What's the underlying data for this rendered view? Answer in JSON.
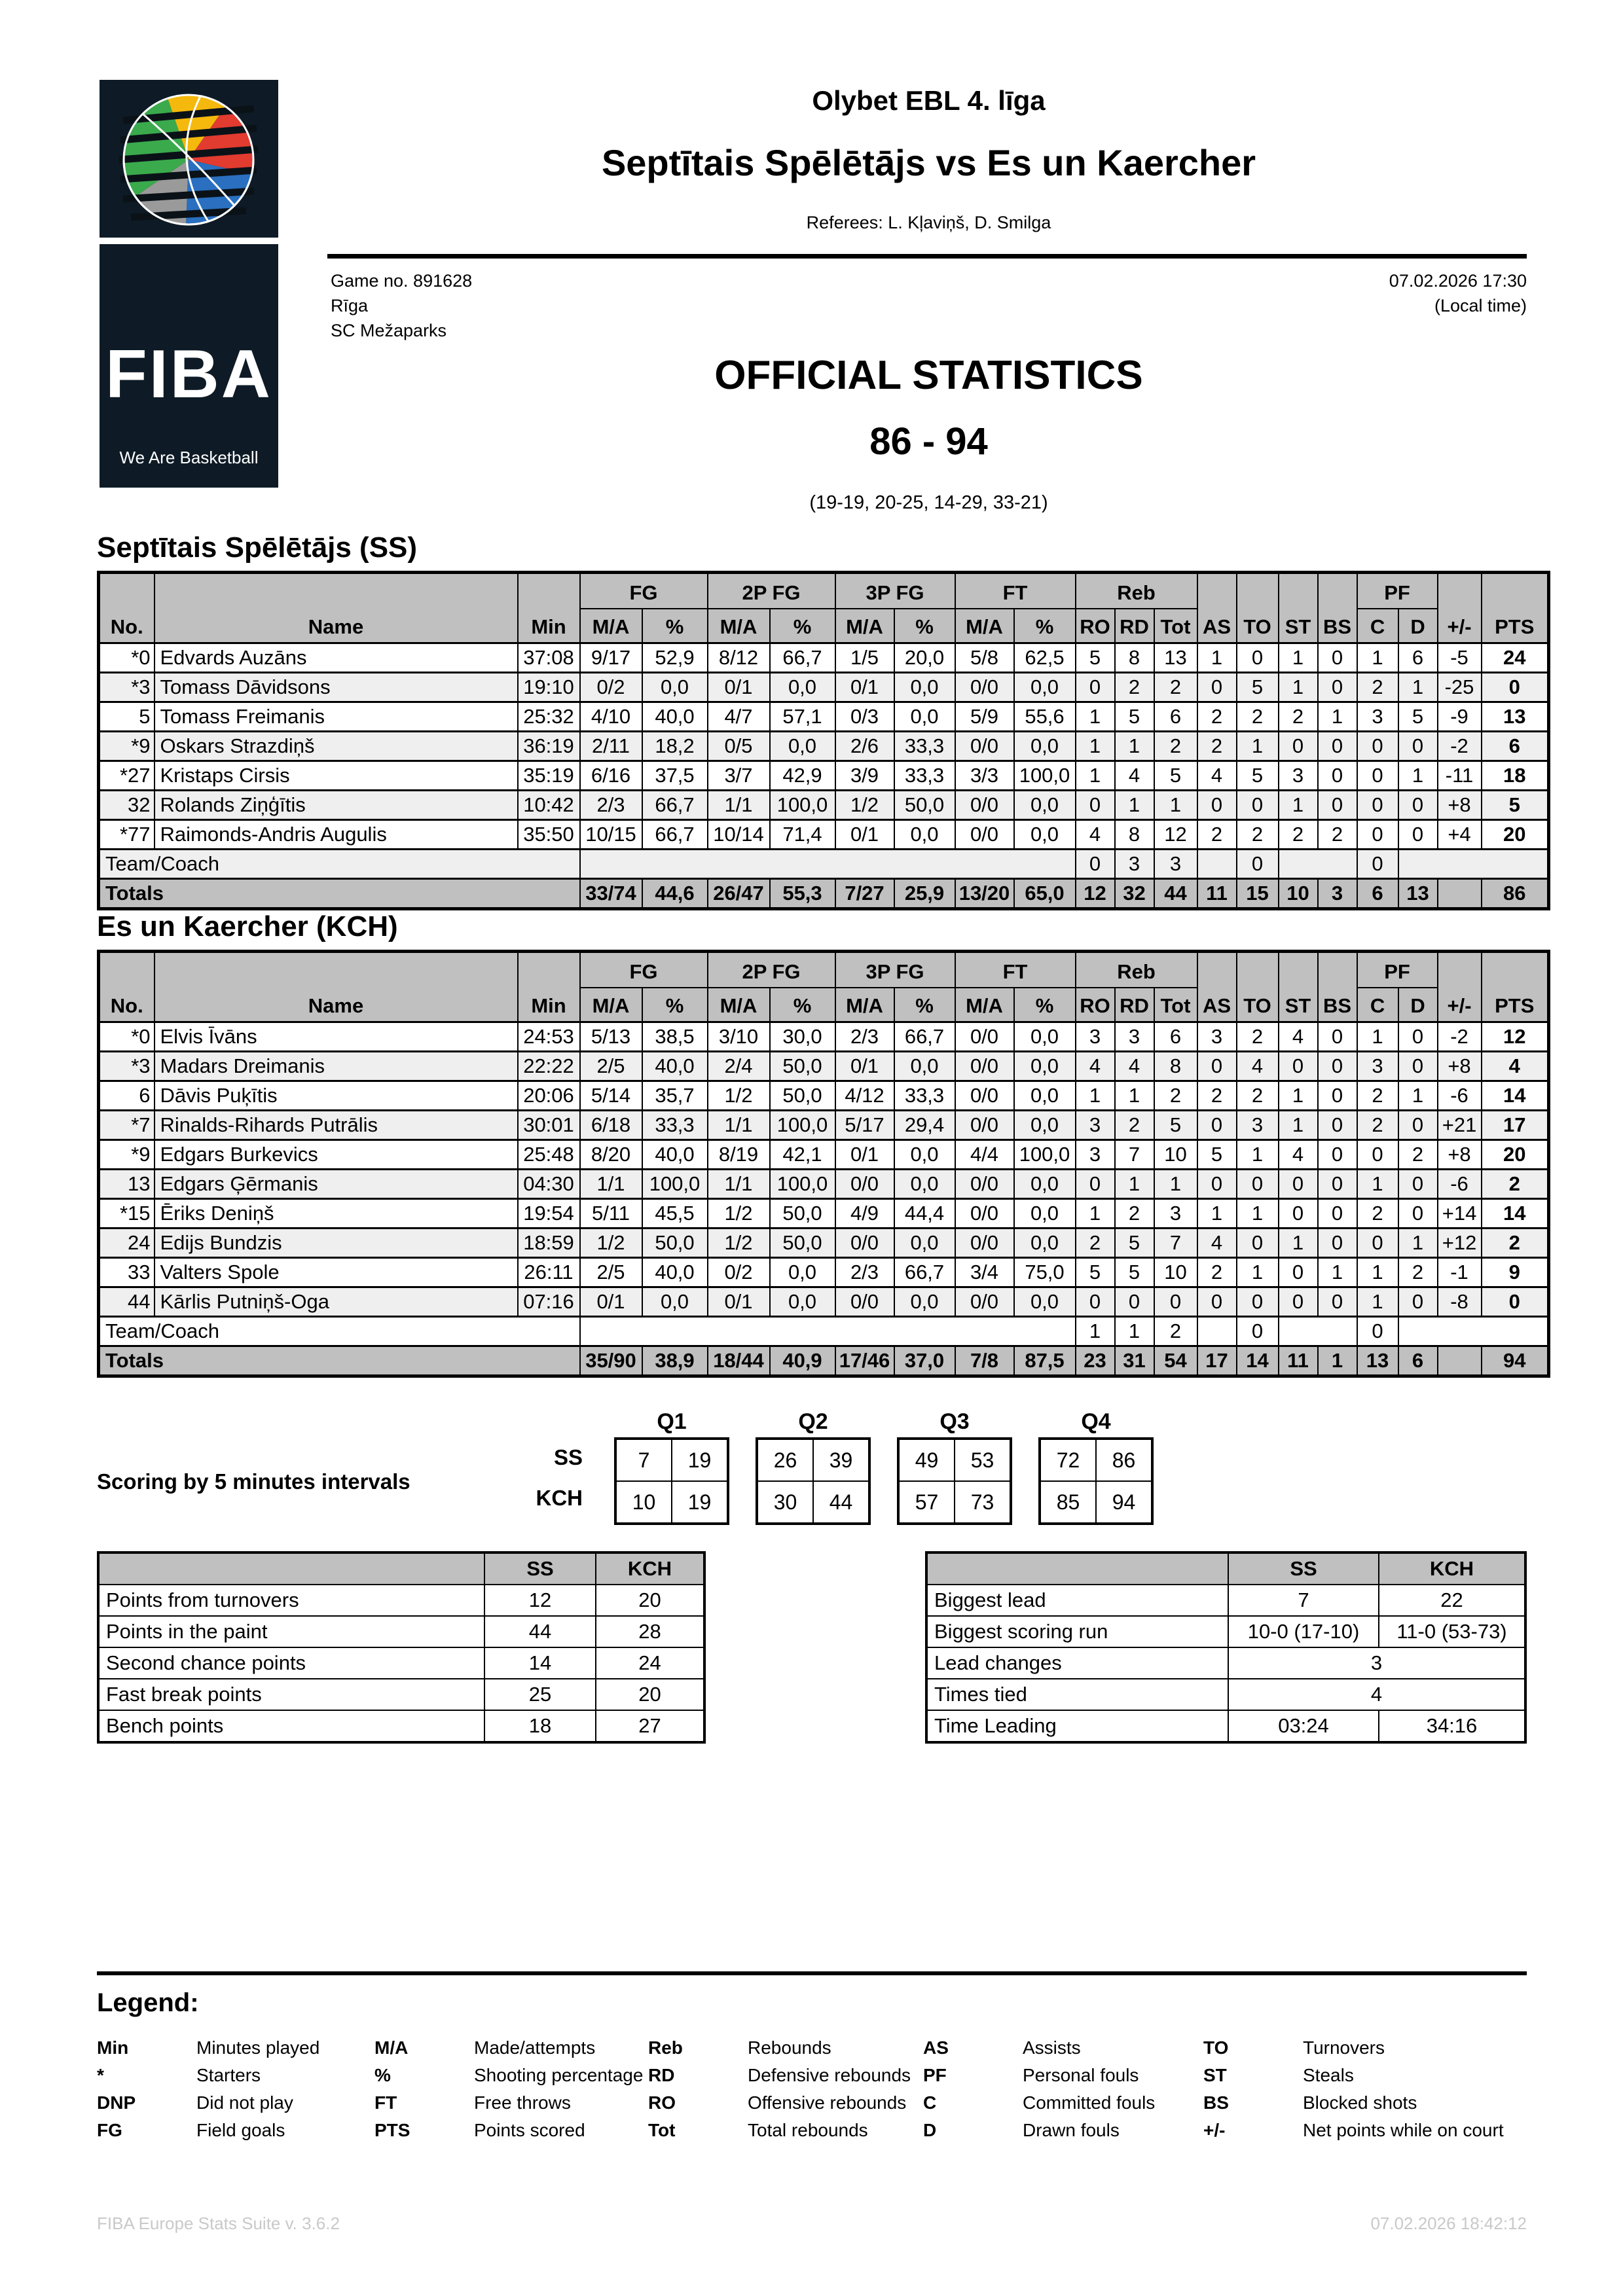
{
  "header": {
    "league": "Olybet EBL 4. līga",
    "matchup": "Septītais Spēlētājs vs Es un Kaercher",
    "referees": "Referees: L. Kļaviņš, D. Smilga",
    "game_no": "Game no. 891628",
    "city": "Rīga",
    "venue": "SC Mežaparks",
    "datetime": "07.02.2026 17:30",
    "local_time": "(Local time)",
    "title": "OFFICIAL STATISTICS",
    "score": "86 - 94",
    "quarter_scores": "(19-19, 20-25, 14-29, 33-21)",
    "logo_word": "FIBA",
    "logo_tagline": "We Are Basketball"
  },
  "labels": {
    "no": "No.",
    "name": "Name",
    "min": "Min",
    "ma": "M/A",
    "pct": "%",
    "fg": "FG",
    "fg2": "2P FG",
    "fg3": "3P FG",
    "ft": "FT",
    "reb": "Reb",
    "ro": "RO",
    "rd": "RD",
    "tot": "Tot",
    "as": "AS",
    "to": "TO",
    "st": "ST",
    "bs": "BS",
    "pf": "PF",
    "c": "C",
    "d": "D",
    "pm": "+/-",
    "pts": "PTS",
    "team_coach": "Team/Coach",
    "totals": "Totals"
  },
  "team_ss": {
    "title": "Septītais Spēlētājs (SS)",
    "players": [
      {
        "no": "*0",
        "name": "Edvards Auzāns",
        "min": "37:08",
        "fg_ma": "9/17",
        "fg_pct": "52,9",
        "p2_ma": "8/12",
        "p2_pct": "66,7",
        "p3_ma": "1/5",
        "p3_pct": "20,0",
        "ft_ma": "5/8",
        "ft_pct": "62,5",
        "ro": "5",
        "rd": "8",
        "tot": "13",
        "as": "1",
        "to": "0",
        "st": "1",
        "bs": "0",
        "c": "1",
        "d": "6",
        "pm": "-5",
        "pts": "24"
      },
      {
        "no": "*3",
        "name": "Tomass Dāvidsons",
        "min": "19:10",
        "fg_ma": "0/2",
        "fg_pct": "0,0",
        "p2_ma": "0/1",
        "p2_pct": "0,0",
        "p3_ma": "0/1",
        "p3_pct": "0,0",
        "ft_ma": "0/0",
        "ft_pct": "0,0",
        "ro": "0",
        "rd": "2",
        "tot": "2",
        "as": "0",
        "to": "5",
        "st": "1",
        "bs": "0",
        "c": "2",
        "d": "1",
        "pm": "-25",
        "pts": "0"
      },
      {
        "no": "5",
        "name": "Tomass Freimanis",
        "min": "25:32",
        "fg_ma": "4/10",
        "fg_pct": "40,0",
        "p2_ma": "4/7",
        "p2_pct": "57,1",
        "p3_ma": "0/3",
        "p3_pct": "0,0",
        "ft_ma": "5/9",
        "ft_pct": "55,6",
        "ro": "1",
        "rd": "5",
        "tot": "6",
        "as": "2",
        "to": "2",
        "st": "2",
        "bs": "1",
        "c": "3",
        "d": "5",
        "pm": "-9",
        "pts": "13"
      },
      {
        "no": "*9",
        "name": "Oskars Strazdiņš",
        "min": "36:19",
        "fg_ma": "2/11",
        "fg_pct": "18,2",
        "p2_ma": "0/5",
        "p2_pct": "0,0",
        "p3_ma": "2/6",
        "p3_pct": "33,3",
        "ft_ma": "0/0",
        "ft_pct": "0,0",
        "ro": "1",
        "rd": "1",
        "tot": "2",
        "as": "2",
        "to": "1",
        "st": "0",
        "bs": "0",
        "c": "0",
        "d": "0",
        "pm": "-2",
        "pts": "6"
      },
      {
        "no": "*27",
        "name": "Kristaps Cirsis",
        "min": "35:19",
        "fg_ma": "6/16",
        "fg_pct": "37,5",
        "p2_ma": "3/7",
        "p2_pct": "42,9",
        "p3_ma": "3/9",
        "p3_pct": "33,3",
        "ft_ma": "3/3",
        "ft_pct": "100,0",
        "ro": "1",
        "rd": "4",
        "tot": "5",
        "as": "4",
        "to": "5",
        "st": "3",
        "bs": "0",
        "c": "0",
        "d": "1",
        "pm": "-11",
        "pts": "18"
      },
      {
        "no": "32",
        "name": "Rolands Ziņģītis",
        "min": "10:42",
        "fg_ma": "2/3",
        "fg_pct": "66,7",
        "p2_ma": "1/1",
        "p2_pct": "100,0",
        "p3_ma": "1/2",
        "p3_pct": "50,0",
        "ft_ma": "0/0",
        "ft_pct": "0,0",
        "ro": "0",
        "rd": "1",
        "tot": "1",
        "as": "0",
        "to": "0",
        "st": "1",
        "bs": "0",
        "c": "0",
        "d": "0",
        "pm": "+8",
        "pts": "5"
      },
      {
        "no": "*77",
        "name": "Raimonds-Andris Augulis",
        "min": "35:50",
        "fg_ma": "10/15",
        "fg_pct": "66,7",
        "p2_ma": "10/14",
        "p2_pct": "71,4",
        "p3_ma": "0/1",
        "p3_pct": "0,0",
        "ft_ma": "0/0",
        "ft_pct": "0,0",
        "ro": "4",
        "rd": "8",
        "tot": "12",
        "as": "2",
        "to": "2",
        "st": "2",
        "bs": "2",
        "c": "0",
        "d": "0",
        "pm": "+4",
        "pts": "20"
      }
    ],
    "team_coach": {
      "ro": "0",
      "rd": "3",
      "tot": "3",
      "to": "0",
      "c": "0"
    },
    "totals": {
      "fg_ma": "33/74",
      "fg_pct": "44,6",
      "p2_ma": "26/47",
      "p2_pct": "55,3",
      "p3_ma": "7/27",
      "p3_pct": "25,9",
      "ft_ma": "13/20",
      "ft_pct": "65,0",
      "ro": "12",
      "rd": "32",
      "tot": "44",
      "as": "11",
      "to": "15",
      "st": "10",
      "bs": "3",
      "c": "6",
      "d": "13",
      "pts": "86"
    }
  },
  "team_kch": {
    "title": "Es un Kaercher (KCH)",
    "players": [
      {
        "no": "*0",
        "name": "Elvis Īvāns",
        "min": "24:53",
        "fg_ma": "5/13",
        "fg_pct": "38,5",
        "p2_ma": "3/10",
        "p2_pct": "30,0",
        "p3_ma": "2/3",
        "p3_pct": "66,7",
        "ft_ma": "0/0",
        "ft_pct": "0,0",
        "ro": "3",
        "rd": "3",
        "tot": "6",
        "as": "3",
        "to": "2",
        "st": "4",
        "bs": "0",
        "c": "1",
        "d": "0",
        "pm": "-2",
        "pts": "12"
      },
      {
        "no": "*3",
        "name": "Madars Dreimanis",
        "min": "22:22",
        "fg_ma": "2/5",
        "fg_pct": "40,0",
        "p2_ma": "2/4",
        "p2_pct": "50,0",
        "p3_ma": "0/1",
        "p3_pct": "0,0",
        "ft_ma": "0/0",
        "ft_pct": "0,0",
        "ro": "4",
        "rd": "4",
        "tot": "8",
        "as": "0",
        "to": "4",
        "st": "0",
        "bs": "0",
        "c": "3",
        "d": "0",
        "pm": "+8",
        "pts": "4"
      },
      {
        "no": "6",
        "name": "Dāvis Puķītis",
        "min": "20:06",
        "fg_ma": "5/14",
        "fg_pct": "35,7",
        "p2_ma": "1/2",
        "p2_pct": "50,0",
        "p3_ma": "4/12",
        "p3_pct": "33,3",
        "ft_ma": "0/0",
        "ft_pct": "0,0",
        "ro": "1",
        "rd": "1",
        "tot": "2",
        "as": "2",
        "to": "2",
        "st": "1",
        "bs": "0",
        "c": "2",
        "d": "1",
        "pm": "-6",
        "pts": "14"
      },
      {
        "no": "*7",
        "name": "Rinalds-Rihards Putrālis",
        "min": "30:01",
        "fg_ma": "6/18",
        "fg_pct": "33,3",
        "p2_ma": "1/1",
        "p2_pct": "100,0",
        "p3_ma": "5/17",
        "p3_pct": "29,4",
        "ft_ma": "0/0",
        "ft_pct": "0,0",
        "ro": "3",
        "rd": "2",
        "tot": "5",
        "as": "0",
        "to": "3",
        "st": "1",
        "bs": "0",
        "c": "2",
        "d": "0",
        "pm": "+21",
        "pts": "17"
      },
      {
        "no": "*9",
        "name": "Edgars Burkevics",
        "min": "25:48",
        "fg_ma": "8/20",
        "fg_pct": "40,0",
        "p2_ma": "8/19",
        "p2_pct": "42,1",
        "p3_ma": "0/1",
        "p3_pct": "0,0",
        "ft_ma": "4/4",
        "ft_pct": "100,0",
        "ro": "3",
        "rd": "7",
        "tot": "10",
        "as": "5",
        "to": "1",
        "st": "4",
        "bs": "0",
        "c": "0",
        "d": "2",
        "pm": "+8",
        "pts": "20"
      },
      {
        "no": "13",
        "name": "Edgars Ģērmanis",
        "min": "04:30",
        "fg_ma": "1/1",
        "fg_pct": "100,0",
        "p2_ma": "1/1",
        "p2_pct": "100,0",
        "p3_ma": "0/0",
        "p3_pct": "0,0",
        "ft_ma": "0/0",
        "ft_pct": "0,0",
        "ro": "0",
        "rd": "1",
        "tot": "1",
        "as": "0",
        "to": "0",
        "st": "0",
        "bs": "0",
        "c": "1",
        "d": "0",
        "pm": "-6",
        "pts": "2"
      },
      {
        "no": "*15",
        "name": "Ēriks Deniņš",
        "min": "19:54",
        "fg_ma": "5/11",
        "fg_pct": "45,5",
        "p2_ma": "1/2",
        "p2_pct": "50,0",
        "p3_ma": "4/9",
        "p3_pct": "44,4",
        "ft_ma": "0/0",
        "ft_pct": "0,0",
        "ro": "1",
        "rd": "2",
        "tot": "3",
        "as": "1",
        "to": "1",
        "st": "0",
        "bs": "0",
        "c": "2",
        "d": "0",
        "pm": "+14",
        "pts": "14"
      },
      {
        "no": "24",
        "name": "Edijs Bundzis",
        "min": "18:59",
        "fg_ma": "1/2",
        "fg_pct": "50,0",
        "p2_ma": "1/2",
        "p2_pct": "50,0",
        "p3_ma": "0/0",
        "p3_pct": "0,0",
        "ft_ma": "0/0",
        "ft_pct": "0,0",
        "ro": "2",
        "rd": "5",
        "tot": "7",
        "as": "4",
        "to": "0",
        "st": "1",
        "bs": "0",
        "c": "0",
        "d": "1",
        "pm": "+12",
        "pts": "2"
      },
      {
        "no": "33",
        "name": "Valters Spole",
        "min": "26:11",
        "fg_ma": "2/5",
        "fg_pct": "40,0",
        "p2_ma": "0/2",
        "p2_pct": "0,0",
        "p3_ma": "2/3",
        "p3_pct": "66,7",
        "ft_ma": "3/4",
        "ft_pct": "75,0",
        "ro": "5",
        "rd": "5",
        "tot": "10",
        "as": "2",
        "to": "1",
        "st": "0",
        "bs": "1",
        "c": "1",
        "d": "2",
        "pm": "-1",
        "pts": "9"
      },
      {
        "no": "44",
        "name": "Kārlis Putniņš-Oga",
        "min": "07:16",
        "fg_ma": "0/1",
        "fg_pct": "0,0",
        "p2_ma": "0/1",
        "p2_pct": "0,0",
        "p3_ma": "0/0",
        "p3_pct": "0,0",
        "ft_ma": "0/0",
        "ft_pct": "0,0",
        "ro": "0",
        "rd": "0",
        "tot": "0",
        "as": "0",
        "to": "0",
        "st": "0",
        "bs": "0",
        "c": "1",
        "d": "0",
        "pm": "-8",
        "pts": "0"
      }
    ],
    "team_coach": {
      "ro": "1",
      "rd": "1",
      "tot": "2",
      "to": "0",
      "c": "0"
    },
    "totals": {
      "fg_ma": "35/90",
      "fg_pct": "38,9",
      "p2_ma": "18/44",
      "p2_pct": "40,9",
      "p3_ma": "17/46",
      "p3_pct": "37,0",
      "ft_ma": "7/8",
      "ft_pct": "87,5",
      "ro": "23",
      "rd": "31",
      "tot": "54",
      "as": "17",
      "to": "14",
      "st": "11",
      "bs": "1",
      "c": "13",
      "d": "6",
      "pts": "94"
    }
  },
  "scoring": {
    "label": "Scoring by 5 minutes intervals",
    "row_labels": {
      "ss": "SS",
      "kch": "KCH"
    },
    "quarters": [
      {
        "label": "Q1",
        "ss": [
          "7",
          "19"
        ],
        "kch": [
          "10",
          "19"
        ]
      },
      {
        "label": "Q2",
        "ss": [
          "26",
          "39"
        ],
        "kch": [
          "30",
          "44"
        ]
      },
      {
        "label": "Q3",
        "ss": [
          "49",
          "53"
        ],
        "kch": [
          "57",
          "73"
        ]
      },
      {
        "label": "Q4",
        "ss": [
          "72",
          "86"
        ],
        "kch": [
          "85",
          "94"
        ]
      }
    ]
  },
  "cmp_left": {
    "headers": {
      "ss": "SS",
      "kch": "KCH"
    },
    "rows": [
      {
        "label": "Points from turnovers",
        "ss": "12",
        "kch": "20"
      },
      {
        "label": "Points in the paint",
        "ss": "44",
        "kch": "28"
      },
      {
        "label": "Second chance points",
        "ss": "14",
        "kch": "24"
      },
      {
        "label": "Fast break points",
        "ss": "25",
        "kch": "20"
      },
      {
        "label": "Bench points",
        "ss": "18",
        "kch": "27"
      }
    ]
  },
  "cmp_right": {
    "headers": {
      "ss": "SS",
      "kch": "KCH"
    },
    "rows": [
      {
        "label": "Biggest lead",
        "ss": "7",
        "kch": "22"
      },
      {
        "label": "Biggest scoring run",
        "ss": "10-0 (17-10)",
        "kch": "11-0 (53-73)"
      },
      {
        "label": "Lead changes",
        "both": "3"
      },
      {
        "label": "Times tied",
        "both": "4"
      },
      {
        "label": "Time Leading",
        "ss": "03:24",
        "kch": "34:16"
      }
    ]
  },
  "legend": {
    "title": "Legend:",
    "columns": [
      [
        {
          "abbr": "Min",
          "desc": "Minutes played"
        },
        {
          "abbr": "*",
          "desc": "Starters"
        },
        {
          "abbr": "DNP",
          "desc": "Did not play"
        },
        {
          "abbr": "FG",
          "desc": "Field goals"
        }
      ],
      [
        {
          "abbr": "M/A",
          "desc": "Made/attempts"
        },
        {
          "abbr": "%",
          "desc": "Shooting percentage"
        },
        {
          "abbr": "FT",
          "desc": "Free throws"
        },
        {
          "abbr": "PTS",
          "desc": "Points scored"
        }
      ],
      [
        {
          "abbr": "Reb",
          "desc": "Rebounds"
        },
        {
          "abbr": "RD",
          "desc": "Defensive rebounds"
        },
        {
          "abbr": "RO",
          "desc": "Offensive rebounds"
        },
        {
          "abbr": "Tot",
          "desc": "Total rebounds"
        }
      ],
      [
        {
          "abbr": "AS",
          "desc": "Assists"
        },
        {
          "abbr": "PF",
          "desc": "Personal fouls"
        },
        {
          "abbr": "C",
          "desc": "Committed fouls"
        },
        {
          "abbr": "D",
          "desc": "Drawn fouls"
        }
      ],
      [
        {
          "abbr": "TO",
          "desc": "Turnovers"
        },
        {
          "abbr": "ST",
          "desc": "Steals"
        },
        {
          "abbr": "BS",
          "desc": "Blocked shots"
        },
        {
          "abbr": "+/-",
          "desc": "Net points while on court"
        }
      ]
    ]
  },
  "footer": {
    "left": "FIBA Europe Stats Suite v. 3.6.2",
    "right": "07.02.2026 18:42:12"
  }
}
